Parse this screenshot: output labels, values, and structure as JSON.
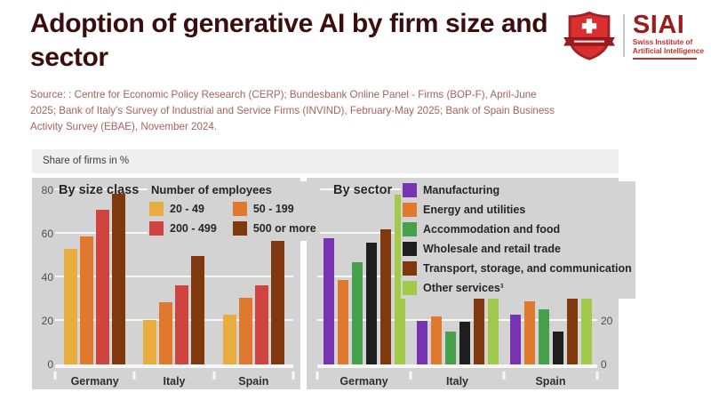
{
  "header": {
    "title": "Adoption of generative AI by firm size and sector",
    "source": "Source: : Centre for Economic Policy Research (CERP);  Bundesbank Online Panel - Firms (BOP-F), April-June 2025; Bank of Italy's Survey of Industrial and Service Firms (INVIND), February-May 2025; Bank of Spain Business Activity Survey (EBAE), November 2024.",
    "logo": {
      "acronym": "SIAI",
      "subtitle_line1": "Swiss Institute of",
      "subtitle_line2": "Artificial Intelligence",
      "icon": "swiss-shield-icon",
      "brand_red": "#C2302B",
      "acronym_red": "#9E1B1B"
    }
  },
  "charts": {
    "unit_label": "Share of firms in %",
    "panel_bg": "#D3D3D3",
    "grid_color": "#F7F7F7",
    "title_color": "#3B0D0C",
    "source_color": "#A5625E"
  },
  "chart_data": [
    {
      "type": "bar",
      "title": "By size class",
      "legend_title": "Number of employees",
      "unit": "Share of firms in %",
      "categories": [
        "Germany",
        "Italy",
        "Spain"
      ],
      "series": [
        {
          "name": "20 - 49",
          "color": "#E8AC3F",
          "values": [
            53,
            20.5,
            23
          ]
        },
        {
          "name": "50 - 199",
          "color": "#E0782E",
          "values": [
            59,
            28.5,
            30.5
          ]
        },
        {
          "name": "200 - 499",
          "color": "#CF443E",
          "values": [
            71,
            36.5,
            36.5
          ]
        },
        {
          "name": "500 or more",
          "color": "#80390F",
          "values": [
            78.5,
            50,
            61
          ]
        }
      ],
      "ylim": [
        0,
        80
      ],
      "yticks": [
        0,
        20,
        40,
        60,
        80
      ],
      "axis_side": "left",
      "legend_position": "top-right",
      "grid": true
    },
    {
      "type": "bar",
      "title": "By sector",
      "legend_title": "",
      "unit": "Share of firms in %",
      "categories": [
        "Germany",
        "Italy",
        "Spain"
      ],
      "series": [
        {
          "name": "Manufacturing",
          "color": "#7733B2",
          "values": [
            58,
            20,
            23
          ]
        },
        {
          "name": "Energy and utilities",
          "color": "#E0782E",
          "values": [
            39,
            22,
            29
          ]
        },
        {
          "name": "Accommodation and food",
          "color": "#47A04B",
          "values": [
            47,
            15,
            25.5
          ]
        },
        {
          "name": "Wholesale and retail trade",
          "color": "#1E1E1E",
          "values": [
            56,
            19.5,
            15
          ]
        },
        {
          "name": "Transport, storage, and communication",
          "color": "#80390F",
          "values": [
            62,
            31,
            38
          ]
        },
        {
          "name": "Other services¹",
          "color": "#A1C94A",
          "values": [
            78,
            40,
            34
          ]
        }
      ],
      "ylim": [
        0,
        80
      ],
      "yticks": [
        0,
        20,
        40,
        60,
        80
      ],
      "axis_side": "right",
      "legend_position": "top-right",
      "grid": true
    }
  ]
}
